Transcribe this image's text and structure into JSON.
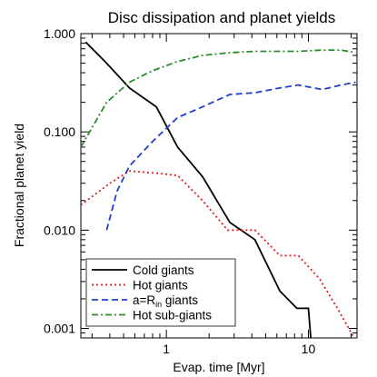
{
  "chart_data": {
    "type": "line",
    "title": "Disc dissipation and planet yields",
    "xlabel": "Evap. time [Myr]",
    "ylabel": "Fractional planet yield",
    "xscale": "log",
    "yscale": "log",
    "xlim": [
      0.25,
      22
    ],
    "ylim": [
      0.0008,
      1.0
    ],
    "x_ticks": [
      {
        "value": 1,
        "label": "1"
      },
      {
        "value": 10,
        "label": "10"
      }
    ],
    "y_ticks": [
      {
        "value": 0.001,
        "label": "0.001"
      },
      {
        "value": 0.01,
        "label": "0.010"
      },
      {
        "value": 0.1,
        "label": "0.100"
      },
      {
        "value": 1.0,
        "label": "1.000"
      }
    ],
    "legend_position": "bottom-left",
    "series": [
      {
        "name": "Cold giants",
        "color": "#000000",
        "dash": "solid",
        "points": [
          [
            0.27,
            0.82
          ],
          [
            0.37,
            0.52
          ],
          [
            0.55,
            0.28
          ],
          [
            0.85,
            0.18
          ],
          [
            1.2,
            0.07
          ],
          [
            1.8,
            0.035
          ],
          [
            2.8,
            0.012
          ],
          [
            4.2,
            0.008
          ],
          [
            6.3,
            0.0024
          ],
          [
            8.3,
            0.0016
          ],
          [
            10.0,
            0.0016
          ],
          [
            10.4,
            0.0008
          ]
        ]
      },
      {
        "name": "Hot giants",
        "color": "#e41a1c",
        "dash": "dotted",
        "points": [
          [
            0.25,
            0.018
          ],
          [
            0.4,
            0.03
          ],
          [
            0.55,
            0.04
          ],
          [
            0.85,
            0.038
          ],
          [
            1.2,
            0.036
          ],
          [
            1.8,
            0.02
          ],
          [
            2.7,
            0.01
          ],
          [
            4.2,
            0.01
          ],
          [
            6.3,
            0.0055
          ],
          [
            8.5,
            0.0055
          ],
          [
            12.0,
            0.0032
          ],
          [
            16.0,
            0.0016
          ],
          [
            21.0,
            0.0008
          ]
        ]
      },
      {
        "name": "a=R_in giants",
        "label_main": "a=R",
        "label_sub": "in",
        "label_tail": " giants",
        "color": "#1f3fd0",
        "dash": "dashed",
        "points": [
          [
            0.38,
            0.01
          ],
          [
            0.45,
            0.025
          ],
          [
            0.55,
            0.045
          ],
          [
            0.8,
            0.08
          ],
          [
            1.2,
            0.14
          ],
          [
            1.8,
            0.18
          ],
          [
            2.8,
            0.24
          ],
          [
            4.2,
            0.25
          ],
          [
            6.3,
            0.28
          ],
          [
            8.5,
            0.3
          ],
          [
            12.5,
            0.27
          ],
          [
            17.0,
            0.3
          ],
          [
            21.5,
            0.32
          ]
        ]
      },
      {
        "name": "Hot sub-giants",
        "color": "#2e8b2e",
        "dash": "dashdot",
        "points": [
          [
            0.25,
            0.07
          ],
          [
            0.38,
            0.2
          ],
          [
            0.55,
            0.32
          ],
          [
            0.8,
            0.42
          ],
          [
            1.2,
            0.52
          ],
          [
            1.8,
            0.6
          ],
          [
            2.8,
            0.64
          ],
          [
            4.2,
            0.66
          ],
          [
            6.3,
            0.66
          ],
          [
            8.5,
            0.66
          ],
          [
            12.5,
            0.68
          ],
          [
            17.0,
            0.68
          ],
          [
            21.5,
            0.64
          ]
        ]
      }
    ]
  }
}
